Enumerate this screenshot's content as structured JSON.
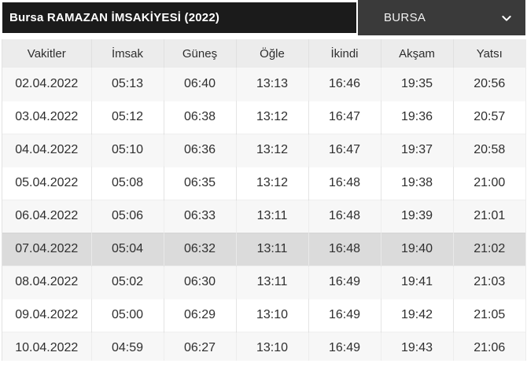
{
  "header": {
    "title": "Bursa RAMAZAN İMSAKİYESİ (2022)",
    "city_select": {
      "value": "BURSA",
      "icon": "chevron-down-icon"
    }
  },
  "table": {
    "columns": [
      "Vakitler",
      "İmsak",
      "Güneş",
      "Öğle",
      "İkindi",
      "Akşam",
      "Yatsı"
    ],
    "highlighted_date": "07.04.2022",
    "rows": [
      {
        "date": "02.04.2022",
        "times": [
          "05:13",
          "06:40",
          "13:13",
          "16:46",
          "19:35",
          "20:56"
        ]
      },
      {
        "date": "03.04.2022",
        "times": [
          "05:12",
          "06:38",
          "13:12",
          "16:47",
          "19:36",
          "20:57"
        ]
      },
      {
        "date": "04.04.2022",
        "times": [
          "05:10",
          "06:36",
          "13:12",
          "16:47",
          "19:37",
          "20:58"
        ]
      },
      {
        "date": "05.04.2022",
        "times": [
          "05:08",
          "06:35",
          "13:12",
          "16:48",
          "19:38",
          "21:00"
        ]
      },
      {
        "date": "06.04.2022",
        "times": [
          "05:06",
          "06:33",
          "13:11",
          "16:48",
          "19:39",
          "21:01"
        ]
      },
      {
        "date": "07.04.2022",
        "times": [
          "05:04",
          "06:32",
          "13:11",
          "16:48",
          "19:40",
          "21:02"
        ]
      },
      {
        "date": "08.04.2022",
        "times": [
          "05:02",
          "06:30",
          "13:11",
          "16:49",
          "19:41",
          "21:03"
        ]
      },
      {
        "date": "09.04.2022",
        "times": [
          "05:00",
          "06:29",
          "13:10",
          "16:49",
          "19:42",
          "21:05"
        ]
      },
      {
        "date": "10.04.2022",
        "times": [
          "04:59",
          "06:27",
          "13:10",
          "16:49",
          "19:43",
          "21:06"
        ]
      }
    ]
  },
  "colors": {
    "header_bar": "#1b1b1b",
    "dropdown_bg": "#3a3a3a",
    "header_row_bg": "#ececec",
    "stripe_row": "#f7f7f7",
    "highlight_row": "#dbdbdb"
  }
}
